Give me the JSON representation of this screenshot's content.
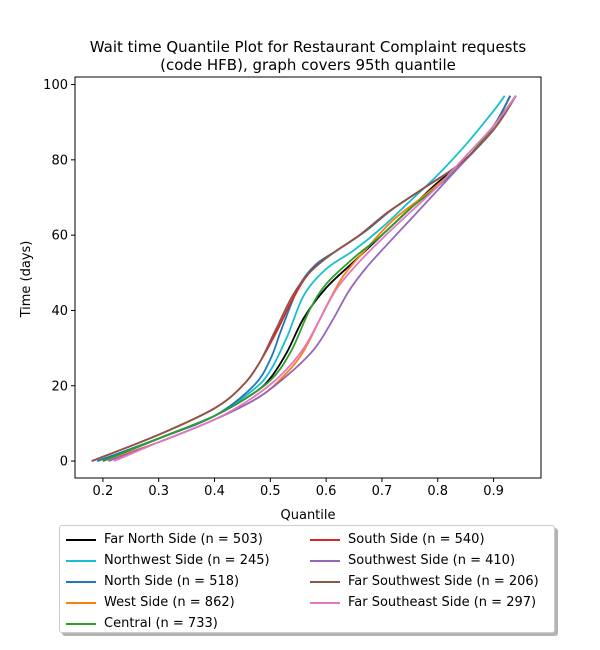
{
  "chart_data": {
    "type": "line",
    "title_line1": "Wait time Quantile Plot for Restaurant Complaint  requests",
    "title_line2": "(code HFB), graph covers 95th quantile",
    "xlabel": "Quantile",
    "ylabel": "Time (days)",
    "xlim": [
      0.15,
      0.985
    ],
    "ylim": [
      -4.5,
      102
    ],
    "xticks": [
      0.2,
      0.3,
      0.4,
      0.5,
      0.6,
      0.7,
      0.8,
      0.9
    ],
    "xtick_labels": [
      "0.2",
      "0.3",
      "0.4",
      "0.5",
      "0.6",
      "0.7",
      "0.8",
      "0.9"
    ],
    "yticks": [
      0,
      20,
      40,
      60,
      80,
      100
    ],
    "ytick_labels": [
      "0",
      "20",
      "40",
      "60",
      "80",
      "100"
    ],
    "grid": false,
    "legend_placement": "below plot, two columns",
    "series": [
      {
        "name": "Far North Side (n = 503)",
        "color": "#000000",
        "x": [
          0.2,
          0.3,
          0.4,
          0.47,
          0.5,
          0.53,
          0.56,
          0.6,
          0.65,
          0.7,
          0.75,
          0.8,
          0.85,
          0.9,
          0.93
        ],
        "y": [
          0,
          6,
          12,
          18,
          22,
          29,
          38,
          46,
          53,
          60,
          67,
          74,
          80,
          89,
          97
        ]
      },
      {
        "name": "Northwest Side (n = 245)",
        "color": "#17becf",
        "x": [
          0.19,
          0.3,
          0.4,
          0.47,
          0.5,
          0.53,
          0.56,
          0.6,
          0.65,
          0.7,
          0.75,
          0.8,
          0.85,
          0.9,
          0.92
        ],
        "y": [
          0,
          6,
          12,
          19,
          24,
          33,
          44,
          51,
          56,
          62,
          69,
          76,
          84,
          93,
          97
        ]
      },
      {
        "name": "North Side (n = 518)",
        "color": "#1f77b4",
        "x": [
          0.19,
          0.3,
          0.4,
          0.47,
          0.5,
          0.52,
          0.55,
          0.58,
          0.62,
          0.67,
          0.72,
          0.78,
          0.85,
          0.9,
          0.93
        ],
        "y": [
          0,
          6,
          12,
          20,
          27,
          35,
          46,
          52,
          56,
          61,
          67,
          73,
          80,
          89,
          97
        ]
      },
      {
        "name": "West Side (n = 862)",
        "color": "#ff7f0e",
        "x": [
          0.2,
          0.3,
          0.4,
          0.48,
          0.52,
          0.55,
          0.57,
          0.6,
          0.63,
          0.67,
          0.72,
          0.78,
          0.85,
          0.9,
          0.94
        ],
        "y": [
          0,
          5,
          11,
          17,
          22,
          27,
          32,
          41,
          49,
          56,
          64,
          71,
          80,
          89,
          97
        ]
      },
      {
        "name": "Central (n = 733)",
        "color": "#2ca02c",
        "x": [
          0.2,
          0.3,
          0.4,
          0.47,
          0.51,
          0.54,
          0.57,
          0.6,
          0.65,
          0.7,
          0.75,
          0.8,
          0.85,
          0.9,
          0.94
        ],
        "y": [
          0,
          6,
          12,
          18,
          23,
          30,
          40,
          47,
          54,
          60,
          67,
          73,
          80,
          89,
          97
        ]
      },
      {
        "name": "South Side (n = 540)",
        "color": "#d62728",
        "x": [
          0.18,
          0.3,
          0.4,
          0.45,
          0.48,
          0.51,
          0.54,
          0.57,
          0.61,
          0.66,
          0.71,
          0.77,
          0.84,
          0.9,
          0.94
        ],
        "y": [
          0,
          7,
          14,
          20,
          26,
          34,
          43,
          50,
          55,
          60,
          66,
          72,
          79,
          88,
          97
        ]
      },
      {
        "name": "Southwest Side (n = 410)",
        "color": "#9467bd",
        "x": [
          0.21,
          0.3,
          0.4,
          0.48,
          0.54,
          0.58,
          0.61,
          0.64,
          0.67,
          0.7,
          0.75,
          0.8,
          0.85,
          0.9,
          0.94
        ],
        "y": [
          0,
          5,
          11,
          17,
          24,
          30,
          37,
          45,
          51,
          56,
          64,
          72,
          80,
          88,
          97
        ]
      },
      {
        "name": "Far Southwest Side (n = 206)",
        "color": "#8c564b",
        "x": [
          0.18,
          0.3,
          0.4,
          0.45,
          0.48,
          0.51,
          0.54,
          0.57,
          0.61,
          0.66,
          0.71,
          0.77,
          0.84,
          0.9,
          0.94
        ],
        "y": [
          0,
          7,
          14,
          20,
          26,
          35,
          44,
          50,
          55,
          60,
          66,
          72,
          79,
          88,
          97
        ]
      },
      {
        "name": "Far Southeast Side (n = 297)",
        "color": "#e377c2",
        "x": [
          0.22,
          0.3,
          0.4,
          0.47,
          0.52,
          0.56,
          0.59,
          0.62,
          0.66,
          0.7,
          0.75,
          0.8,
          0.85,
          0.9,
          0.94
        ],
        "y": [
          0,
          5,
          11,
          17,
          23,
          30,
          38,
          46,
          53,
          59,
          66,
          73,
          81,
          89,
          97
        ]
      }
    ]
  }
}
